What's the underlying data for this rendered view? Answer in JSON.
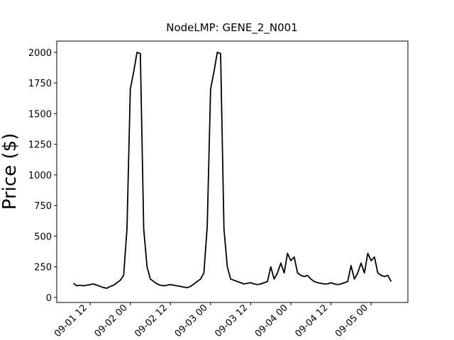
{
  "chart_data": {
    "type": "line",
    "title": "NodeLMP: GENE_2_N001",
    "y_label": "Price ($)",
    "color": "#000000",
    "x": [
      "09-01 07",
      "09-01 08",
      "09-01 09",
      "09-01 10",
      "09-01 11",
      "09-01 12",
      "09-01 13",
      "09-01 14",
      "09-01 15",
      "09-01 16",
      "09-01 17",
      "09-01 18",
      "09-01 19",
      "09-01 20",
      "09-01 21",
      "09-01 22",
      "09-01 23",
      "09-02 00",
      "09-02 01",
      "09-02 02",
      "09-02 03",
      "09-02 04",
      "09-02 05",
      "09-02 06",
      "09-02 07",
      "09-02 08",
      "09-02 09",
      "09-02 10",
      "09-02 11",
      "09-02 12",
      "09-02 13",
      "09-02 14",
      "09-02 15",
      "09-02 16",
      "09-02 17",
      "09-02 18",
      "09-02 19",
      "09-02 20",
      "09-02 21",
      "09-02 22",
      "09-02 23",
      "09-03 00",
      "09-03 01",
      "09-03 02",
      "09-03 03",
      "09-03 04",
      "09-03 05",
      "09-03 06",
      "09-03 07",
      "09-03 08",
      "09-03 09",
      "09-03 10",
      "09-03 11",
      "09-03 12",
      "09-03 13",
      "09-03 14",
      "09-03 15",
      "09-03 16",
      "09-03 17",
      "09-03 18",
      "09-03 19",
      "09-03 20",
      "09-03 21",
      "09-03 22",
      "09-03 23",
      "09-04 00",
      "09-04 01",
      "09-04 02",
      "09-04 03",
      "09-04 04",
      "09-04 05",
      "09-04 06",
      "09-04 07",
      "09-04 08",
      "09-04 09",
      "09-04 10",
      "09-04 11",
      "09-04 12",
      "09-04 13",
      "09-04 14",
      "09-04 15",
      "09-04 16",
      "09-04 17",
      "09-04 18",
      "09-04 19",
      "09-04 20",
      "09-04 21",
      "09-04 22",
      "09-04 23",
      "09-05 00",
      "09-05 01",
      "09-05 02",
      "09-05 03",
      "09-05 04",
      "09-05 05",
      "09-05 06"
    ],
    "values": [
      115,
      95,
      100,
      95,
      100,
      105,
      110,
      100,
      90,
      80,
      75,
      90,
      100,
      120,
      140,
      180,
      560,
      1700,
      1840,
      2000,
      1990,
      560,
      250,
      150,
      130,
      110,
      100,
      95,
      100,
      105,
      100,
      95,
      90,
      85,
      80,
      90,
      110,
      130,
      150,
      200,
      580,
      1700,
      1840,
      2000,
      1990,
      560,
      250,
      150,
      140,
      130,
      120,
      110,
      115,
      120,
      110,
      105,
      110,
      120,
      130,
      250,
      150,
      200,
      280,
      200,
      360,
      300,
      330,
      200,
      180,
      170,
      180,
      150,
      130,
      120,
      115,
      110,
      110,
      120,
      110,
      105,
      110,
      120,
      130,
      260,
      150,
      200,
      280,
      200,
      360,
      300,
      330,
      200,
      180,
      170,
      180,
      130
    ],
    "xlim": [
      "09-01 02",
      "09-05 11"
    ],
    "xticks": [
      "09-01 12",
      "09-02 00",
      "09-02 12",
      "09-03 00",
      "09-03 12",
      "09-04 00",
      "09-04 12",
      "09-05 00"
    ],
    "ylim": [
      -41,
      2092
    ],
    "yticks": [
      0,
      250,
      500,
      750,
      1000,
      1250,
      1500,
      1750,
      2000
    ]
  }
}
